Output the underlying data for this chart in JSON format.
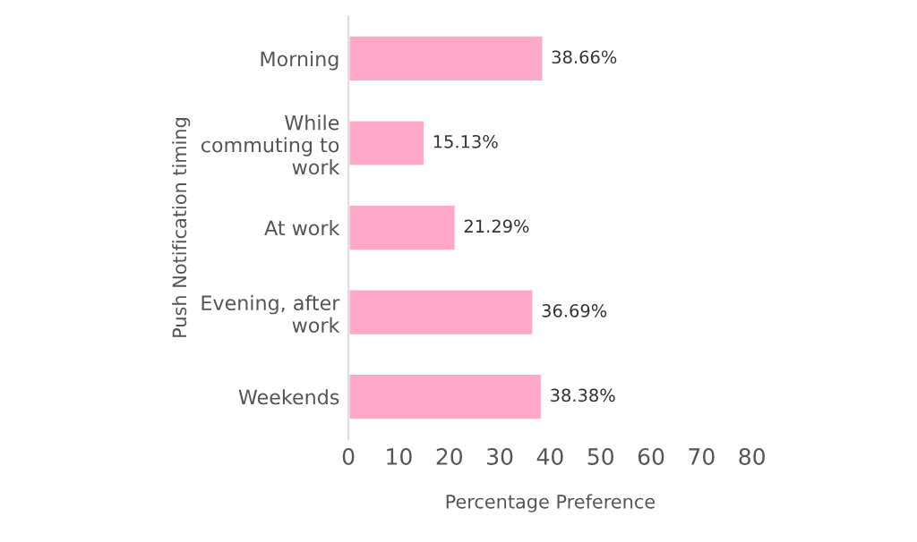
{
  "chart_data": {
    "type": "bar",
    "orientation": "horizontal",
    "xlabel": "Percentage Preference",
    "ylabel": "Push Notification timing",
    "categories": [
      "Morning",
      "While\ncommuting to\nwork",
      "At work",
      "Evening, after\nwork",
      "Weekends"
    ],
    "values": [
      38.66,
      15.13,
      21.29,
      36.69,
      38.38
    ],
    "value_labels": [
      "38.66%",
      "15.13%",
      "21.29%",
      "36.69%",
      "38.38%"
    ],
    "color": "#ffa8c9",
    "xlim": [
      0,
      80
    ],
    "xticks": [
      0,
      10,
      20,
      30,
      40,
      50,
      60,
      70,
      80
    ],
    "grid": false,
    "legend": false
  }
}
